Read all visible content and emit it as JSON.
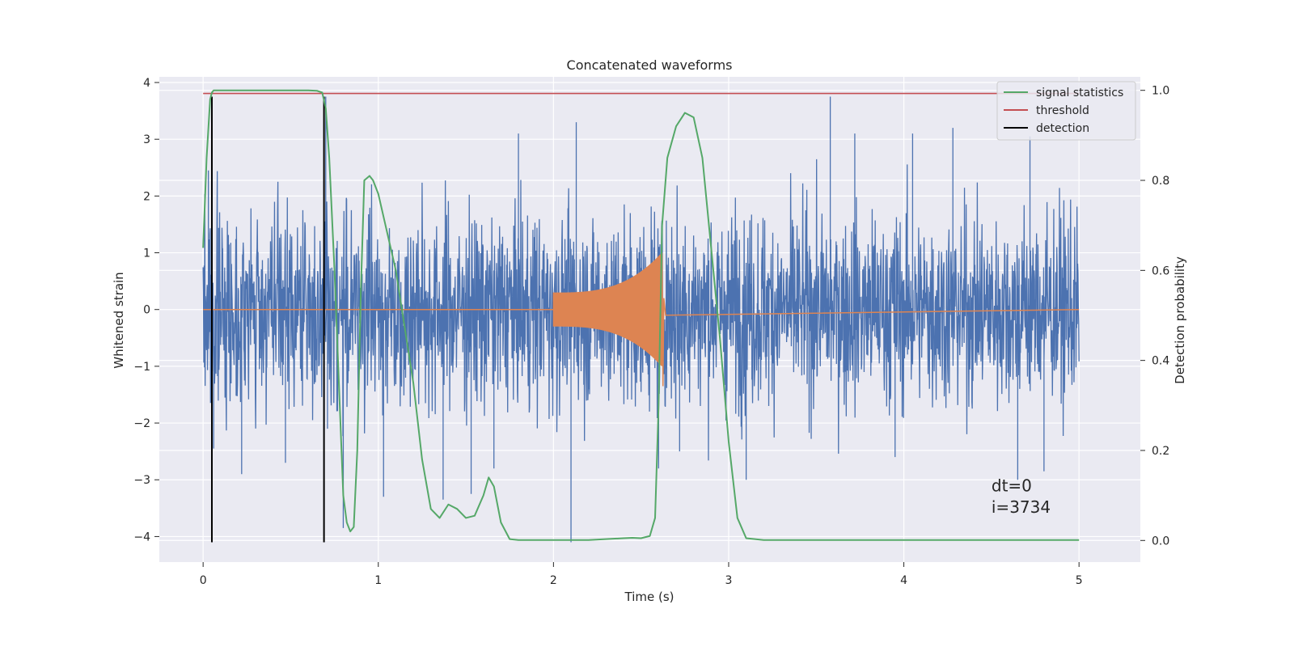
{
  "chart_data": {
    "type": "line",
    "title": "Concatenated waveforms",
    "xlabel": "Time (s)",
    "ylabel": "Whitened strain",
    "y2label": "Detection probability",
    "xlim": [
      -0.25,
      5.35
    ],
    "ylim": [
      -4.45,
      4.1
    ],
    "y2lim": [
      -0.048,
      1.03
    ],
    "xticks": [
      0,
      1,
      2,
      3,
      4,
      5
    ],
    "xtick_labels": [
      "0",
      "1",
      "2",
      "3",
      "4",
      "5"
    ],
    "yticks": [
      -4,
      -3,
      -2,
      -1,
      0,
      1,
      2,
      3,
      4
    ],
    "ytick_labels": [
      "−4",
      "−3",
      "−2",
      "−1",
      "0",
      "1",
      "2",
      "3",
      "4"
    ],
    "y2ticks": [
      0.0,
      0.2,
      0.4,
      0.6,
      0.8,
      1.0
    ],
    "y2tick_labels": [
      "0.0",
      "0.2",
      "0.4",
      "0.6",
      "0.8",
      "1.0"
    ],
    "grid": true,
    "legend_position": "top-right",
    "colors": {
      "noise": "#4c72b0",
      "injected": "#dd8452",
      "signal_statistics": "#55a868",
      "threshold": "#c44e52",
      "detection": "#000000",
      "background": "#eaeaf2"
    },
    "series": [
      {
        "name": "signal statistics",
        "axis": "right",
        "x": [
          0.0,
          0.02,
          0.04,
          0.05,
          0.06,
          0.08,
          0.1,
          0.3,
          0.5,
          0.6,
          0.65,
          0.68,
          0.7,
          0.72,
          0.75,
          0.78,
          0.8,
          0.82,
          0.84,
          0.86,
          0.88,
          0.9,
          0.92,
          0.95,
          0.97,
          1.0,
          1.1,
          1.2,
          1.25,
          1.3,
          1.35,
          1.4,
          1.45,
          1.5,
          1.55,
          1.6,
          1.63,
          1.66,
          1.7,
          1.75,
          1.8,
          2.0,
          2.2,
          2.4,
          2.45,
          2.5,
          2.55,
          2.58,
          2.6,
          2.62,
          2.65,
          2.7,
          2.75,
          2.8,
          2.85,
          2.9,
          2.95,
          3.0,
          3.05,
          3.1,
          3.2,
          3.5,
          4.0,
          4.5,
          5.0
        ],
        "y": [
          0.65,
          0.85,
          0.98,
          0.995,
          1.0,
          1.0,
          1.0,
          1.0,
          1.0,
          1.0,
          0.999,
          0.995,
          0.96,
          0.85,
          0.6,
          0.3,
          0.1,
          0.04,
          0.02,
          0.03,
          0.2,
          0.55,
          0.8,
          0.81,
          0.8,
          0.77,
          0.6,
          0.35,
          0.18,
          0.07,
          0.05,
          0.08,
          0.07,
          0.05,
          0.055,
          0.1,
          0.14,
          0.12,
          0.04,
          0.003,
          0.001,
          0.001,
          0.001,
          0.005,
          0.006,
          0.005,
          0.01,
          0.05,
          0.3,
          0.7,
          0.85,
          0.92,
          0.95,
          0.94,
          0.85,
          0.65,
          0.45,
          0.22,
          0.05,
          0.005,
          0.001,
          0.001,
          0.001,
          0.001,
          0.001
        ]
      },
      {
        "name": "threshold",
        "axis": "right",
        "x": [
          0.0,
          5.0
        ],
        "y": [
          0.993,
          0.993
        ]
      },
      {
        "name": "detection",
        "axis": "left",
        "vlines": [
          0.05,
          0.69
        ],
        "ymin": -4.1,
        "ymax": 3.75
      }
    ],
    "noise": {
      "axis": "left",
      "x_start": 0.0,
      "x_end": 5.0,
      "typical_amplitude": 1.0,
      "peak_range": [
        -3.9,
        3.75
      ],
      "spikes": [
        {
          "x": 0.03,
          "y": 2.45
        },
        {
          "x": 0.05,
          "y": 2.9
        },
        {
          "x": 0.06,
          "y": -2.45
        },
        {
          "x": 0.22,
          "y": -2.9
        },
        {
          "x": 0.47,
          "y": -2.7
        },
        {
          "x": 0.7,
          "y": 3.75
        },
        {
          "x": 0.71,
          "y": -2.1
        },
        {
          "x": 0.8,
          "y": -3.85
        },
        {
          "x": 1.03,
          "y": -3.3
        },
        {
          "x": 1.37,
          "y": -3.35
        },
        {
          "x": 1.53,
          "y": -3.25
        },
        {
          "x": 1.66,
          "y": -2.8
        },
        {
          "x": 1.8,
          "y": 3.1
        },
        {
          "x": 2.1,
          "y": -4.1
        },
        {
          "x": 2.13,
          "y": 3.3
        },
        {
          "x": 2.6,
          "y": -2.8
        },
        {
          "x": 2.72,
          "y": -2.5
        },
        {
          "x": 3.1,
          "y": -3.0
        },
        {
          "x": 3.58,
          "y": 3.75
        },
        {
          "x": 3.72,
          "y": 3.1
        },
        {
          "x": 3.95,
          "y": -2.6
        },
        {
          "x": 4.05,
          "y": 3.1
        },
        {
          "x": 4.28,
          "y": 3.2
        },
        {
          "x": 4.65,
          "y": -3.0
        },
        {
          "x": 4.72,
          "y": 3.05
        },
        {
          "x": 4.8,
          "y": -2.85
        }
      ]
    },
    "injected_waveform": {
      "axis": "left",
      "x_start": 2.0,
      "x_merger": 2.62,
      "amp_start": 0.3,
      "amp_peak": 1.0,
      "peak_low": -1.35
    },
    "legend": [
      "signal statistics",
      "threshold",
      "detection"
    ],
    "annotations": [
      {
        "text": "dt=0",
        "x": 4.5,
        "y": -3.2
      },
      {
        "text": "i=3734",
        "x": 4.5,
        "y": -3.58
      }
    ]
  }
}
